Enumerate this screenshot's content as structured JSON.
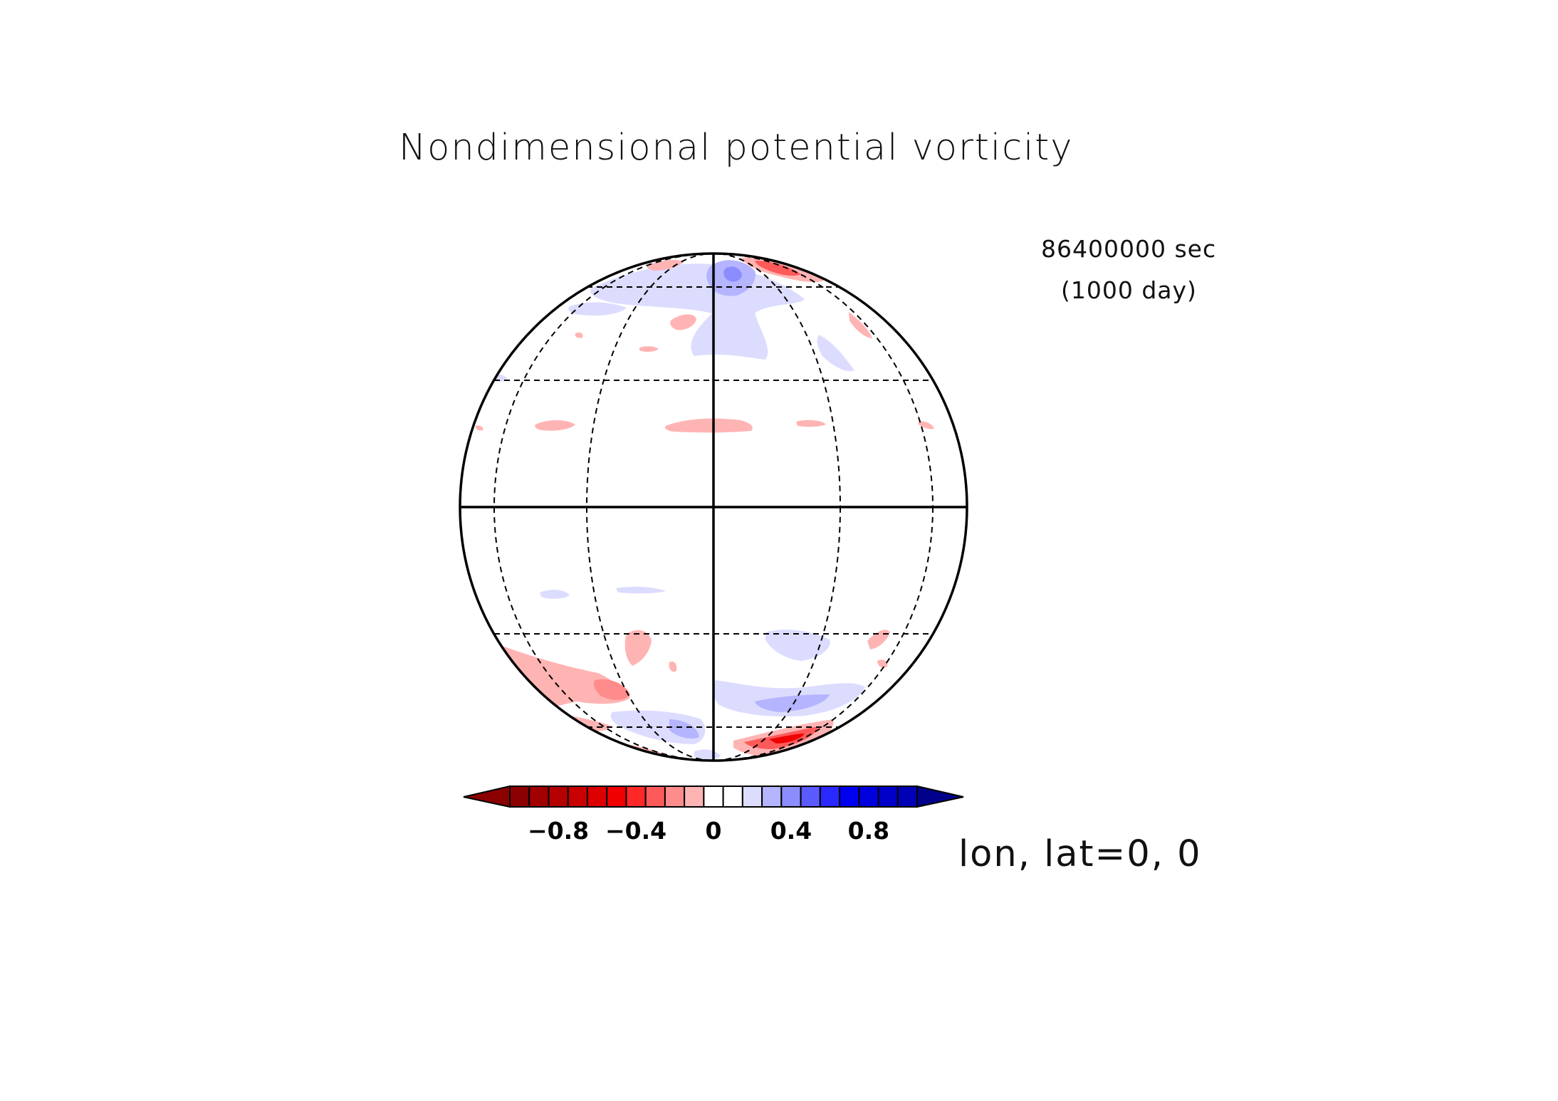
{
  "figure": {
    "title": "Nondimensional potential vorticity",
    "time_seconds": "86400000 sec",
    "time_days": "(1000 day)",
    "projection_label": "lon, lat=0, 0"
  },
  "map": {
    "projection": "orthographic",
    "center_lon": 0,
    "center_lat": 0,
    "graticule_lat_step": 30,
    "graticule_lon_step": 30
  },
  "colorbar": {
    "levels": [
      -1.0,
      -0.9,
      -0.8,
      -0.7,
      -0.6,
      -0.5,
      -0.4,
      -0.3,
      -0.2,
      -0.1,
      0.0,
      0.1,
      0.2,
      0.3,
      0.4,
      0.5,
      0.6,
      0.7,
      0.8,
      0.9,
      1.0
    ],
    "colors": [
      "#8b0000",
      "#a00000",
      "#b40000",
      "#c80000",
      "#dc0000",
      "#f00000",
      "#ff2828",
      "#ff5a5a",
      "#ff8c8c",
      "#ffb4b4",
      "#ffffff",
      "#ffffff",
      "#dcdcff",
      "#b4b4ff",
      "#8c8cff",
      "#5a5aff",
      "#2828ff",
      "#0000f0",
      "#0000dc",
      "#0000c8",
      "#0000b4"
    ],
    "extend_low_color": "#8b0000",
    "extend_high_color": "#00008b",
    "tick_labels": [
      "−0.8",
      "−0.4",
      "0",
      "0.4",
      "0.8"
    ],
    "tick_values": [
      -0.8,
      -0.4,
      0,
      0.4,
      0.8
    ]
  },
  "anomaly_patches": {
    "note_colors": {
      "pos": "#dcdcff",
      "pos2": "#b4b4ff",
      "pos3": "#8c8cff",
      "neg": "#ffb4b4",
      "neg2": "#ff8c8c",
      "neg3": "#f00000"
    }
  }
}
